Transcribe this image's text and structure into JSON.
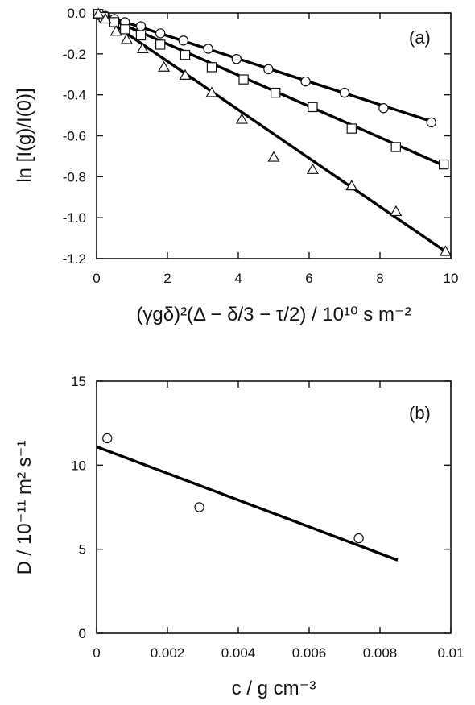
{
  "chart_data": [
    {
      "type": "scatter",
      "panel_label": "(a)",
      "xlabel": "(γgδ)²(Δ − δ/3 − τ/2) / 10¹⁰ s m⁻²",
      "ylabel": "ln [I(g)/I(0)]",
      "xlim": [
        0,
        10
      ],
      "ylim": [
        -1.2,
        0
      ],
      "xticks": [
        "0",
        "2",
        "4",
        "6",
        "8",
        "10"
      ],
      "yticks": [
        "0.0",
        "-0.2",
        "-0.4",
        "-0.6",
        "-0.8",
        "-1.0",
        "-1.2"
      ],
      "legend": "none",
      "grid": false,
      "series": [
        {
          "marker": "circle",
          "points": [
            [
              0.05,
              -0.01
            ],
            [
              0.25,
              -0.015
            ],
            [
              0.5,
              -0.03
            ],
            [
              0.8,
              -0.045
            ],
            [
              1.25,
              -0.065
            ],
            [
              1.8,
              -0.1
            ],
            [
              2.45,
              -0.135
            ],
            [
              3.15,
              -0.175
            ],
            [
              3.95,
              -0.225
            ],
            [
              4.85,
              -0.275
            ],
            [
              5.9,
              -0.335
            ],
            [
              7.0,
              -0.39
            ],
            [
              8.1,
              -0.465
            ],
            [
              9.45,
              -0.535
            ]
          ],
          "fit": [
            [
              0,
              0
            ],
            [
              9.55,
              -0.535
            ]
          ]
        },
        {
          "marker": "square",
          "points": [
            [
              0.05,
              -0.005
            ],
            [
              0.2,
              -0.02
            ],
            [
              0.5,
              -0.045
            ],
            [
              0.8,
              -0.08
            ],
            [
              1.25,
              -0.11
            ],
            [
              1.8,
              -0.155
            ],
            [
              2.5,
              -0.205
            ],
            [
              3.25,
              -0.265
            ],
            [
              4.15,
              -0.325
            ],
            [
              5.05,
              -0.39
            ],
            [
              6.1,
              -0.46
            ],
            [
              7.2,
              -0.565
            ],
            [
              8.45,
              -0.655
            ],
            [
              9.8,
              -0.74
            ]
          ],
          "fit": [
            [
              0,
              0
            ],
            [
              9.8,
              -0.745
            ]
          ]
        },
        {
          "marker": "triangle",
          "points": [
            [
              0.05,
              -0.005
            ],
            [
              0.25,
              -0.03
            ],
            [
              0.55,
              -0.09
            ],
            [
              0.85,
              -0.13
            ],
            [
              1.3,
              -0.175
            ],
            [
              1.9,
              -0.265
            ],
            [
              2.5,
              -0.305
            ],
            [
              3.25,
              -0.39
            ],
            [
              4.1,
              -0.52
            ],
            [
              5.0,
              -0.705
            ],
            [
              6.1,
              -0.765
            ],
            [
              7.2,
              -0.845
            ],
            [
              8.45,
              -0.97
            ],
            [
              9.85,
              -1.165
            ]
          ],
          "fit": [
            [
              0,
              0
            ],
            [
              9.85,
              -1.165
            ]
          ]
        }
      ]
    },
    {
      "type": "scatter",
      "panel_label": "(b)",
      "xlabel": "c / g cm⁻³",
      "ylabel": "D / 10⁻¹¹ m² s⁻¹",
      "xlim": [
        0,
        0.01
      ],
      "ylim": [
        0,
        15
      ],
      "xticks": [
        "0",
        "0.002",
        "0.004",
        "0.006",
        "0.008",
        "0.01"
      ],
      "yticks": [
        "0",
        "5",
        "10",
        "15"
      ],
      "legend": "none",
      "grid": false,
      "series": [
        {
          "marker": "circle",
          "points": [
            [
              0.0003,
              11.6
            ],
            [
              0.0029,
              7.5
            ],
            [
              0.0074,
              5.65
            ]
          ],
          "fit": [
            [
              0,
              11.1
            ],
            [
              0.0085,
              4.35
            ]
          ]
        }
      ]
    }
  ]
}
